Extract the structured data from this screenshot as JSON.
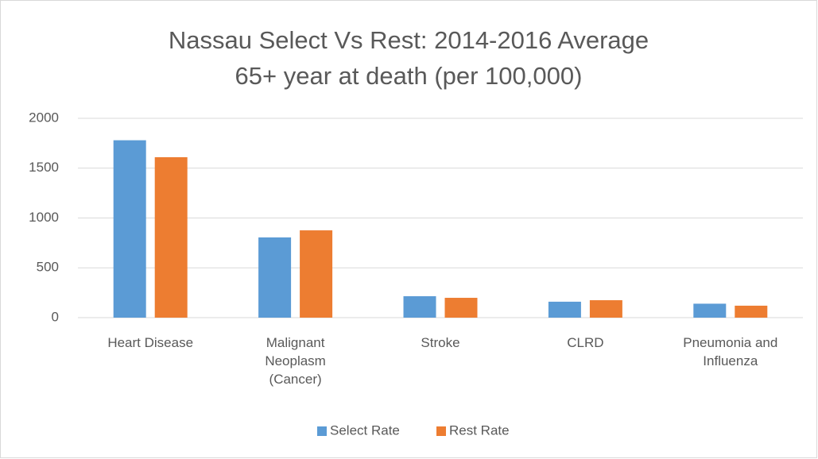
{
  "chart_data": {
    "type": "bar",
    "title": "Nassau Select Vs Rest: 2014-2016 Average",
    "subtitle": "65+ year at death (per 100,000)",
    "categories": [
      "Heart Disease",
      "Malignant Neoplasm (Cancer)",
      "Stroke",
      "CLRD",
      "Pneumonia and Influenza"
    ],
    "series": [
      {
        "name": "Select Rate",
        "color": "#5b9bd5",
        "values": [
          1780,
          805,
          215,
          160,
          140
        ]
      },
      {
        "name": "Rest Rate",
        "color": "#ed7d31",
        "values": [
          1610,
          876,
          199,
          175,
          120
        ]
      }
    ],
    "ylim": [
      0,
      2000
    ],
    "yticks": [
      0,
      500,
      1000,
      1500,
      2000
    ],
    "grid": true,
    "legend": "bottom"
  }
}
